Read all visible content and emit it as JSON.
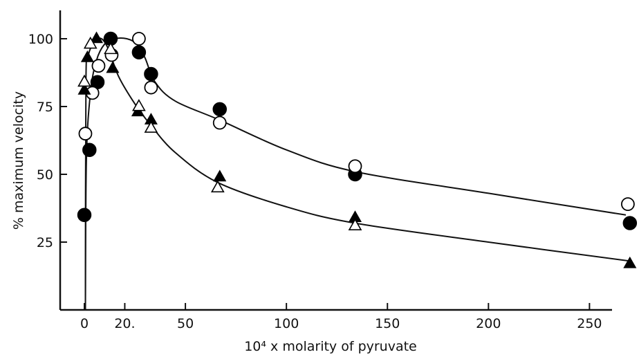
{
  "chart_data": {
    "type": "scatter",
    "title": "",
    "xlabel": "10⁴ x molarity of pyruvate",
    "ylabel": "% maximum velocity",
    "xlim": [
      -12,
      270
    ],
    "ylim": [
      0,
      112
    ],
    "x_ticks": [
      {
        "value": 0,
        "label": "0"
      },
      {
        "value": 20,
        "label": "20."
      },
      {
        "value": 50,
        "label": "50"
      },
      {
        "value": 100,
        "label": "100"
      },
      {
        "value": 150,
        "label": "150"
      },
      {
        "value": 200,
        "label": "200"
      },
      {
        "value": 250,
        "label": "250"
      }
    ],
    "y_ticks": [
      {
        "value": 25,
        "label": "25"
      },
      {
        "value": 50,
        "label": "50"
      },
      {
        "value": 75,
        "label": "75"
      },
      {
        "value": 100,
        "label": "100"
      }
    ],
    "grid": false,
    "legend": "none",
    "series": [
      {
        "marker": "filled-circle",
        "points": [
          {
            "x": 0,
            "y": 35
          },
          {
            "x": 2.5,
            "y": 59
          },
          {
            "x": 6.5,
            "y": 84
          },
          {
            "x": 13,
            "y": 100
          },
          {
            "x": 27,
            "y": 95
          },
          {
            "x": 33,
            "y": 87
          },
          {
            "x": 67,
            "y": 74
          },
          {
            "x": 134,
            "y": 50
          },
          {
            "x": 270,
            "y": 32
          }
        ]
      },
      {
        "marker": "open-circle",
        "points": [
          {
            "x": 0.5,
            "y": 65
          },
          {
            "x": 4,
            "y": 80
          },
          {
            "x": 7,
            "y": 90
          },
          {
            "x": 13.5,
            "y": 94
          },
          {
            "x": 27,
            "y": 100
          },
          {
            "x": 33,
            "y": 82
          },
          {
            "x": 67,
            "y": 69
          },
          {
            "x": 134,
            "y": 53
          },
          {
            "x": 269,
            "y": 39
          }
        ]
      },
      {
        "marker": "filled-triangle",
        "points": [
          {
            "x": 0,
            "y": 81
          },
          {
            "x": 1.5,
            "y": 93
          },
          {
            "x": 6,
            "y": 100
          },
          {
            "x": 14,
            "y": 89
          },
          {
            "x": 26.5,
            "y": 73
          },
          {
            "x": 33,
            "y": 70
          },
          {
            "x": 67,
            "y": 49
          },
          {
            "x": 134,
            "y": 34
          },
          {
            "x": 270,
            "y": 17
          }
        ]
      },
      {
        "marker": "open-triangle",
        "points": [
          {
            "x": 0,
            "y": 84
          },
          {
            "x": 3,
            "y": 98
          },
          {
            "x": 13,
            "y": 96
          },
          {
            "x": 27,
            "y": 75
          },
          {
            "x": 33,
            "y": 67
          },
          {
            "x": 66,
            "y": 45
          },
          {
            "x": 134,
            "y": 31
          }
        ]
      }
    ],
    "curves": [
      {
        "label": "upper-curve",
        "points": [
          {
            "x": 0.5,
            "y": 0
          },
          {
            "x": 1,
            "y": 55
          },
          {
            "x": 3,
            "y": 80
          },
          {
            "x": 6,
            "y": 92
          },
          {
            "x": 10,
            "y": 98
          },
          {
            "x": 15,
            "y": 100
          },
          {
            "x": 21,
            "y": 100
          },
          {
            "x": 26,
            "y": 98
          },
          {
            "x": 30,
            "y": 93
          },
          {
            "x": 35,
            "y": 84
          },
          {
            "x": 45,
            "y": 77
          },
          {
            "x": 67,
            "y": 70
          },
          {
            "x": 100,
            "y": 59
          },
          {
            "x": 134,
            "y": 51
          },
          {
            "x": 200,
            "y": 43
          },
          {
            "x": 268,
            "y": 35
          }
        ]
      },
      {
        "label": "lower-curve",
        "points": [
          {
            "x": 0.5,
            "y": 0
          },
          {
            "x": 0.8,
            "y": 85
          },
          {
            "x": 2,
            "y": 94
          },
          {
            "x": 5,
            "y": 99
          },
          {
            "x": 8.5,
            "y": 100
          },
          {
            "x": 12,
            "y": 96
          },
          {
            "x": 17,
            "y": 86
          },
          {
            "x": 25,
            "y": 76
          },
          {
            "x": 33,
            "y": 68
          },
          {
            "x": 45,
            "y": 58
          },
          {
            "x": 66,
            "y": 47
          },
          {
            "x": 100,
            "y": 38
          },
          {
            "x": 134,
            "y": 32
          },
          {
            "x": 200,
            "y": 25
          },
          {
            "x": 270,
            "y": 18
          }
        ]
      }
    ]
  }
}
